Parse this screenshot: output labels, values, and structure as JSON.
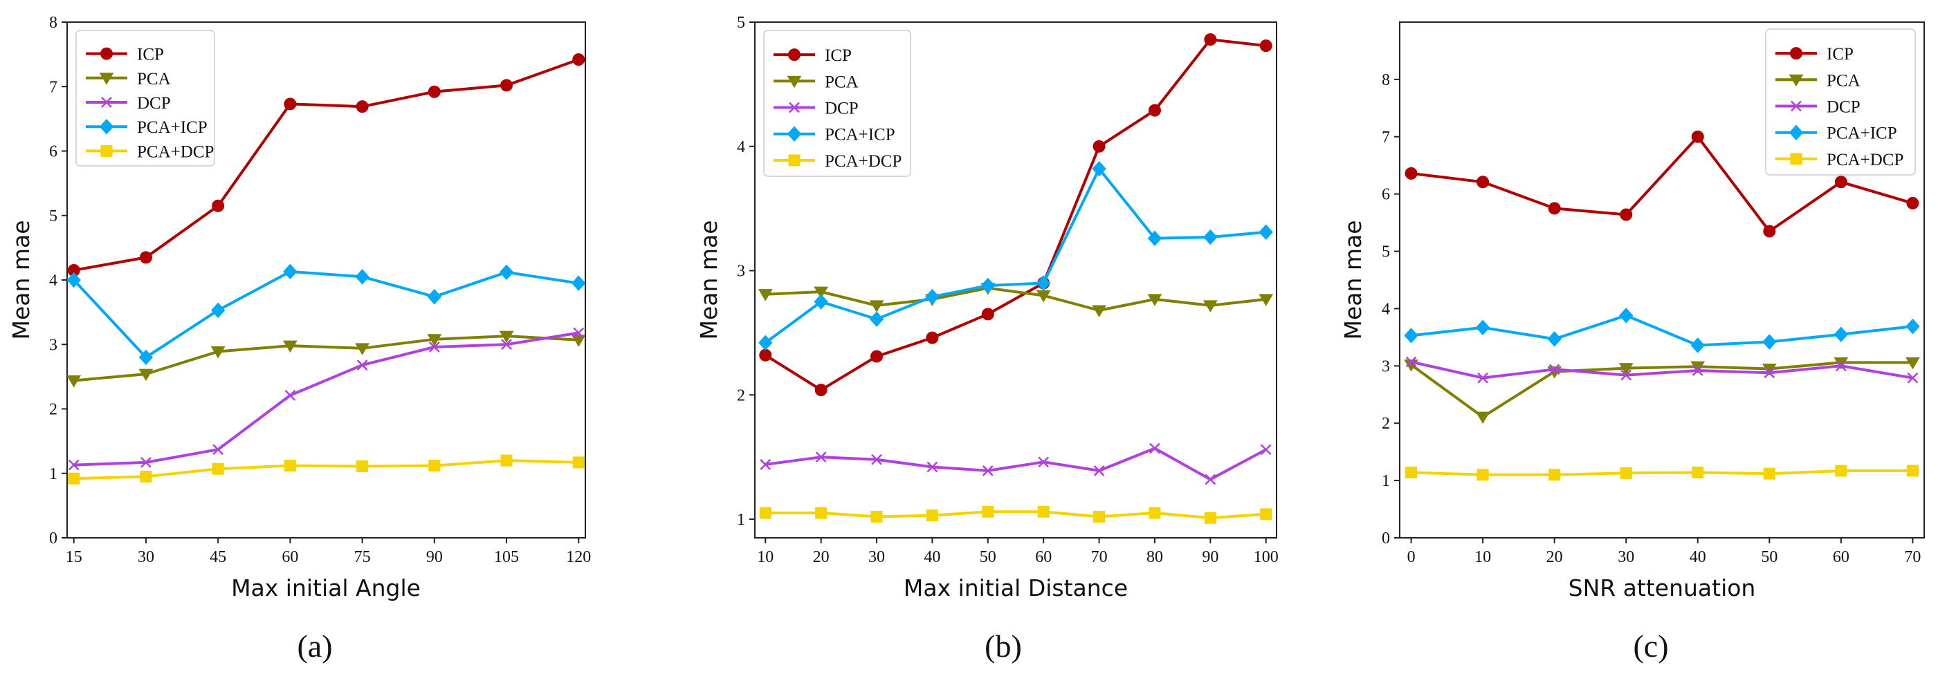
{
  "chart_data": [
    {
      "type": "line",
      "caption": "(a)",
      "xlabel": "Max initial Angle",
      "ylabel": "Mean mae",
      "x": [
        15,
        30,
        45,
        60,
        75,
        90,
        105,
        120
      ],
      "xticks": [
        15,
        30,
        45,
        60,
        75,
        90,
        105,
        120
      ],
      "ylim": [
        0,
        8
      ],
      "yticks": [
        0,
        1,
        2,
        3,
        4,
        5,
        6,
        7,
        8
      ],
      "legend_position": "top-left",
      "series": [
        {
          "name": "ICP",
          "color": "#b00000",
          "marker": "circle",
          "values": [
            4.15,
            4.35,
            5.15,
            6.73,
            6.69,
            6.92,
            7.02,
            7.42
          ]
        },
        {
          "name": "PCA",
          "color": "#808000",
          "marker": "triangle-down",
          "values": [
            2.44,
            2.54,
            2.89,
            2.98,
            2.94,
            3.08,
            3.13,
            3.07
          ]
        },
        {
          "name": "DCP",
          "color": "#b040e0",
          "marker": "x",
          "values": [
            1.13,
            1.17,
            1.37,
            2.21,
            2.68,
            2.96,
            3.0,
            3.18
          ]
        },
        {
          "name": "PCA+ICP",
          "color": "#00a8f8",
          "marker": "diamond",
          "values": [
            4.0,
            2.8,
            3.53,
            4.13,
            4.05,
            3.74,
            4.12,
            3.95
          ]
        },
        {
          "name": "PCA+DCP",
          "color": "#f5d300",
          "marker": "square",
          "values": [
            0.92,
            0.95,
            1.07,
            1.12,
            1.11,
            1.12,
            1.2,
            1.17
          ]
        }
      ]
    },
    {
      "type": "line",
      "caption": "(b)",
      "xlabel": "Max initial Distance",
      "ylabel": "Mean mae",
      "x": [
        10,
        20,
        30,
        40,
        50,
        60,
        70,
        80,
        90,
        100
      ],
      "xticks": [
        10,
        20,
        30,
        40,
        50,
        60,
        70,
        80,
        90,
        100
      ],
      "ylim": [
        0.85,
        5.0
      ],
      "yticks": [
        1,
        2,
        3,
        4,
        5
      ],
      "legend_position": "top-left",
      "series": [
        {
          "name": "ICP",
          "color": "#b00000",
          "marker": "circle",
          "values": [
            2.32,
            2.04,
            2.31,
            2.46,
            2.65,
            2.9,
            4.0,
            4.29,
            4.86,
            4.81
          ]
        },
        {
          "name": "PCA",
          "color": "#808000",
          "marker": "triangle-down",
          "values": [
            2.81,
            2.83,
            2.72,
            2.77,
            2.86,
            2.8,
            2.68,
            2.77,
            2.72,
            2.77
          ]
        },
        {
          "name": "DCP",
          "color": "#b040e0",
          "marker": "x",
          "values": [
            1.44,
            1.5,
            1.48,
            1.42,
            1.39,
            1.46,
            1.39,
            1.57,
            1.32,
            1.56
          ]
        },
        {
          "name": "PCA+ICP",
          "color": "#00a8f8",
          "marker": "diamond",
          "values": [
            2.42,
            2.75,
            2.61,
            2.79,
            2.88,
            2.9,
            3.82,
            3.26,
            3.27,
            3.31
          ]
        },
        {
          "name": "PCA+DCP",
          "color": "#f5d300",
          "marker": "square",
          "values": [
            1.05,
            1.05,
            1.02,
            1.03,
            1.06,
            1.06,
            1.02,
            1.05,
            1.01,
            1.04
          ]
        }
      ]
    },
    {
      "type": "line",
      "caption": "(c)",
      "xlabel": "SNR attenuation",
      "ylabel": "Mean mae",
      "x": [
        0,
        10,
        20,
        30,
        40,
        50,
        60,
        70
      ],
      "xticks": [
        0,
        10,
        20,
        30,
        40,
        50,
        60,
        70
      ],
      "ylim": [
        0,
        9
      ],
      "yticks": [
        0,
        1,
        2,
        3,
        4,
        5,
        6,
        7,
        8
      ],
      "legend_position": "top-right",
      "series": [
        {
          "name": "ICP",
          "color": "#b00000",
          "marker": "circle",
          "values": [
            6.36,
            6.21,
            5.75,
            5.64,
            7.0,
            5.35,
            6.21,
            5.84
          ]
        },
        {
          "name": "PCA",
          "color": "#808000",
          "marker": "triangle-down",
          "values": [
            3.02,
            2.11,
            2.9,
            2.96,
            2.99,
            2.95,
            3.06,
            3.06
          ]
        },
        {
          "name": "DCP",
          "color": "#b040e0",
          "marker": "x",
          "values": [
            3.07,
            2.79,
            2.94,
            2.84,
            2.92,
            2.88,
            3.0,
            2.79
          ]
        },
        {
          "name": "PCA+ICP",
          "color": "#00a8f8",
          "marker": "diamond",
          "values": [
            3.53,
            3.67,
            3.47,
            3.88,
            3.36,
            3.42,
            3.55,
            3.69
          ]
        },
        {
          "name": "PCA+DCP",
          "color": "#f5d300",
          "marker": "square",
          "values": [
            1.14,
            1.1,
            1.1,
            1.13,
            1.14,
            1.12,
            1.17,
            1.17
          ]
        }
      ]
    }
  ]
}
